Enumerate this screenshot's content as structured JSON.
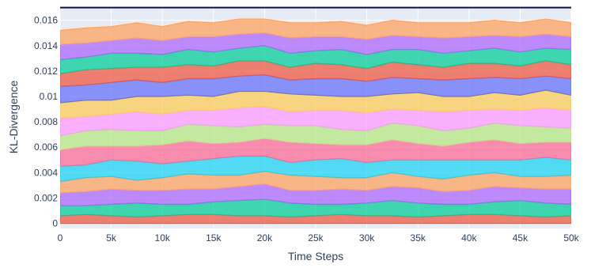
{
  "chart_data": {
    "type": "area",
    "title": "",
    "xlabel": "Time Steps",
    "ylabel": "KL-Divergence",
    "xlim": [
      0,
      50000
    ],
    "ylim": [
      -0.0004,
      0.0171
    ],
    "x_ticks": [
      0,
      5000,
      10000,
      15000,
      20000,
      25000,
      30000,
      35000,
      40000,
      45000,
      50000
    ],
    "x_tick_labels": [
      "0",
      "5k",
      "10k",
      "15k",
      "20k",
      "25k",
      "30k",
      "35k",
      "40k",
      "45k",
      "50k"
    ],
    "y_ticks": [
      0,
      0.002,
      0.004,
      0.006,
      0.008,
      0.01,
      0.012,
      0.014,
      0.016
    ],
    "y_tick_labels": [
      "0",
      "0.002",
      "0.004",
      "0.006",
      "0.008",
      "0.01",
      "0.012",
      "0.014",
      "0.016"
    ],
    "grid": true,
    "legend": "none",
    "plot_background": "#e5ecf6",
    "top_line_value": 0.017,
    "top_line_color": "#1a0f3d",
    "series_colors": [
      "#ef553b",
      "#00cc96",
      "#ab63fa",
      "#ffa15a",
      "#19d3f3",
      "#ff6692",
      "#b6e880",
      "#ff97ff",
      "#fecb52",
      "#636efa"
    ],
    "series": [
      {
        "values": [
          0.0006,
          0.0007,
          0.0006,
          0.0005,
          0.0006,
          0.0007,
          0.0007,
          0.0006,
          0.0006,
          0.0005,
          0.0006,
          0.0007,
          0.0006,
          0.0006,
          0.0005,
          0.0006,
          0.0007,
          0.0007,
          0.0006,
          0.0005,
          0.0006
        ]
      },
      {
        "values": [
          0.0008,
          0.0007,
          0.0009,
          0.0011,
          0.0009,
          0.0008,
          0.001,
          0.0012,
          0.0013,
          0.0011,
          0.0009,
          0.0008,
          0.001,
          0.0012,
          0.0011,
          0.0009,
          0.0008,
          0.001,
          0.0012,
          0.0011,
          0.0009
        ]
      },
      {
        "values": [
          0.001,
          0.0011,
          0.0012,
          0.001,
          0.0011,
          0.0012,
          0.001,
          0.0011,
          0.0012,
          0.001,
          0.0011,
          0.0012,
          0.001,
          0.0011,
          0.0012,
          0.001,
          0.0011,
          0.0012,
          0.001,
          0.0011,
          0.0012
        ]
      },
      {
        "values": [
          0.0009,
          0.0011,
          0.001,
          0.0008,
          0.001,
          0.0012,
          0.0011,
          0.0009,
          0.001,
          0.0012,
          0.0011,
          0.0009,
          0.001,
          0.0011,
          0.0009,
          0.001,
          0.0012,
          0.0011,
          0.0009,
          0.001,
          0.0011
        ]
      },
      {
        "values": [
          0.0012,
          0.001,
          0.0013,
          0.0015,
          0.0011,
          0.001,
          0.0013,
          0.0015,
          0.0012,
          0.001,
          0.0013,
          0.0015,
          0.0012,
          0.001,
          0.0013,
          0.0015,
          0.0012,
          0.001,
          0.0013,
          0.0015,
          0.0012
        ]
      },
      {
        "values": [
          0.0013,
          0.0015,
          0.0011,
          0.0012,
          0.0015,
          0.0016,
          0.0012,
          0.0011,
          0.0014,
          0.0016,
          0.0013,
          0.0011,
          0.0014,
          0.0016,
          0.0013,
          0.0011,
          0.0014,
          0.0016,
          0.0013,
          0.0012,
          0.0014
        ]
      },
      {
        "values": [
          0.0011,
          0.0012,
          0.0013,
          0.0012,
          0.0011,
          0.0013,
          0.0014,
          0.0012,
          0.0011,
          0.0013,
          0.0014,
          0.0012,
          0.0011,
          0.0013,
          0.0014,
          0.0012,
          0.0011,
          0.0013,
          0.0014,
          0.0012,
          0.0011
        ]
      },
      {
        "values": [
          0.0014,
          0.0011,
          0.0012,
          0.0015,
          0.0013,
          0.0011,
          0.0012,
          0.0015,
          0.0014,
          0.0011,
          0.0012,
          0.0015,
          0.0014,
          0.0011,
          0.0012,
          0.0015,
          0.0014,
          0.0011,
          0.0012,
          0.0015,
          0.0014
        ]
      },
      {
        "values": [
          0.0012,
          0.0013,
          0.0011,
          0.0012,
          0.0014,
          0.0012,
          0.0011,
          0.0013,
          0.0012,
          0.0014,
          0.0012,
          0.0011,
          0.0013,
          0.0012,
          0.0014,
          0.0012,
          0.0011,
          0.0013,
          0.0012,
          0.0014,
          0.0012
        ]
      },
      {
        "values": [
          0.0013,
          0.0012,
          0.0014,
          0.0013,
          0.0011,
          0.0013,
          0.0014,
          0.0012,
          0.0013,
          0.0011,
          0.0013,
          0.0014,
          0.0012,
          0.0013,
          0.0011,
          0.0013,
          0.0014,
          0.0012,
          0.0013,
          0.0011,
          0.0013
        ]
      },
      {
        "values": [
          0.001,
          0.0012,
          0.0011,
          0.001,
          0.0012,
          0.0011,
          0.001,
          0.0012,
          0.0011,
          0.001,
          0.0012,
          0.0011,
          0.001,
          0.0012,
          0.0011,
          0.001,
          0.0012,
          0.0011,
          0.001,
          0.0012,
          0.0011
        ]
      },
      {
        "values": [
          0.0011,
          0.001,
          0.0012,
          0.0011,
          0.001,
          0.0012,
          0.0011,
          0.001,
          0.0012,
          0.0011,
          0.001,
          0.0012,
          0.0011,
          0.001,
          0.0012,
          0.0011,
          0.001,
          0.0012,
          0.0011,
          0.001,
          0.0012
        ]
      },
      {
        "values": [
          0.0012,
          0.0011,
          0.001,
          0.0012,
          0.0011,
          0.001,
          0.0012,
          0.0011,
          0.001,
          0.0012,
          0.0011,
          0.001,
          0.0012,
          0.0011,
          0.001,
          0.0012,
          0.0011,
          0.001,
          0.0012,
          0.0011,
          0.001
        ]
      },
      {
        "values": [
          0.0011,
          0.0012,
          0.0011,
          0.0012,
          0.0011,
          0.0012,
          0.0011,
          0.0012,
          0.0011,
          0.0012,
          0.0011,
          0.0012,
          0.0011,
          0.0012,
          0.0011,
          0.0012,
          0.0011,
          0.0012,
          0.0011,
          0.0012,
          0.0011
        ]
      }
    ]
  }
}
